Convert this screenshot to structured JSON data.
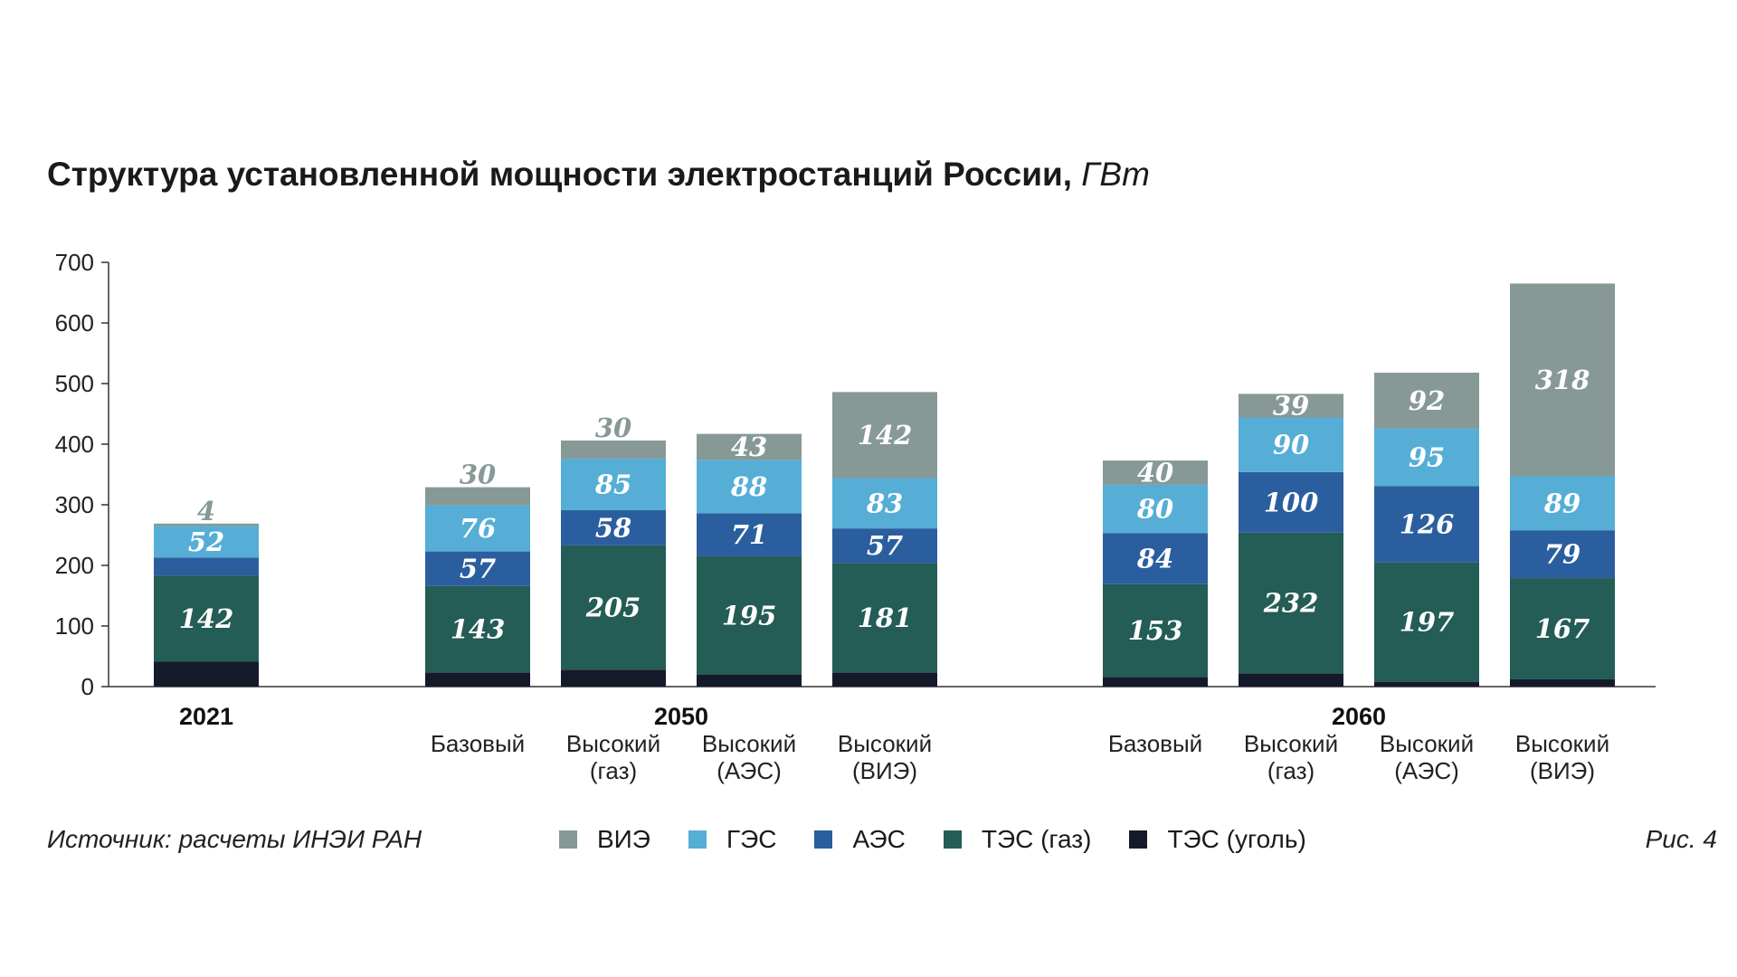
{
  "title": {
    "main": "Структура установленной мощности электростанций России,",
    "unit": "ГВт"
  },
  "footer": {
    "source": "Источник: расчеты ИНЭИ РАН",
    "figure_label": "Рис. 4"
  },
  "colors": {
    "ВИЭ": "#869996",
    "ГЭС": "#56aed6",
    "АЭС": "#2b5e9e",
    "ТЭС (газ)": "#245c56",
    "ТЭС (уголь)": "#151a2b"
  },
  "chart_data": {
    "type": "bar",
    "stacked": true,
    "ylim": [
      0,
      700
    ],
    "yticks": [
      0,
      100,
      200,
      300,
      400,
      500,
      600,
      700
    ],
    "xlabel": "",
    "ylabel": "",
    "legend_position": "bottom",
    "groups": [
      {
        "label": "2021",
        "categories": [
          ""
        ]
      },
      {
        "label": "2050",
        "categories": [
          "Базовый",
          "Высокий (газ)",
          "Высокий (АЭС)",
          "Высокий (ВИЭ)"
        ]
      },
      {
        "label": "2060",
        "categories": [
          "Базовый",
          "Высокий (газ)",
          "Высокий (АЭС)",
          "Высокий (ВИЭ)"
        ]
      }
    ],
    "category_lines": {
      "Базовый": [
        "Базовый"
      ],
      "Высокий (газ)": [
        "Высокий",
        "(газ)"
      ],
      "Высокий (АЭС)": [
        "Высокий",
        "(АЭС)"
      ],
      "Высокий (ВИЭ)": [
        "Высокий",
        "(ВИЭ)"
      ]
    },
    "series": [
      {
        "name": "ТЭС (уголь)",
        "values": [
          41,
          23,
          28,
          20,
          23,
          16,
          22,
          8,
          12
        ],
        "labeled": false
      },
      {
        "name": "ТЭС (газ)",
        "values": [
          142,
          143,
          205,
          195,
          181,
          153,
          232,
          197,
          167
        ],
        "labeled": true
      },
      {
        "name": "АЭС",
        "values": [
          30,
          57,
          58,
          71,
          57,
          84,
          100,
          126,
          79
        ],
        "labeled": true
      },
      {
        "name": "ГЭС",
        "values": [
          52,
          76,
          85,
          88,
          83,
          80,
          90,
          95,
          89
        ],
        "labeled": true
      },
      {
        "name": "ВИЭ",
        "values": [
          4,
          30,
          30,
          43,
          142,
          40,
          39,
          92,
          318
        ],
        "labeled": true
      }
    ],
    "legend": [
      "ВИЭ",
      "ГЭС",
      "АЭС",
      "ТЭС (газ)",
      "ТЭС (уголь)"
    ]
  }
}
